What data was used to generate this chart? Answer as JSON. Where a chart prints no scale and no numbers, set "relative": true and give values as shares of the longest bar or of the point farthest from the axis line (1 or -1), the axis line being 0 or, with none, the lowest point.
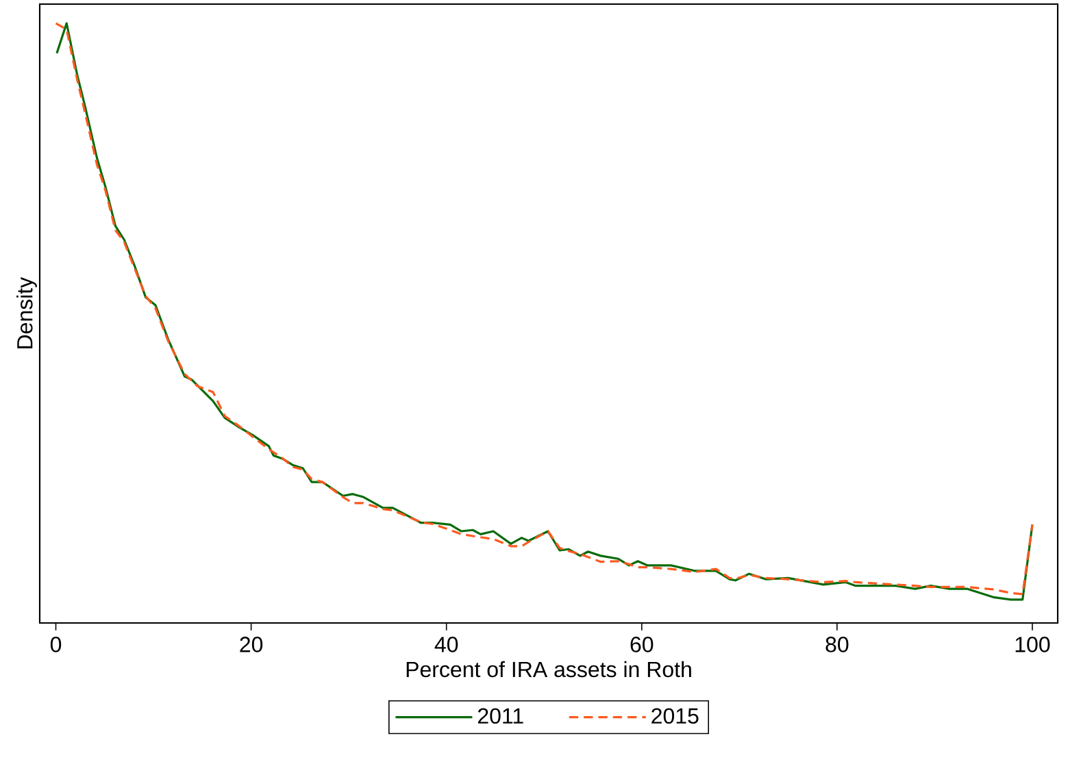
{
  "chart_data": {
    "type": "line",
    "relative": true,
    "xlabel": "Percent of IRA assets in Roth",
    "ylabel": "Density",
    "xlim": [
      -1.65,
      102.6
    ],
    "xticks": [
      0,
      20,
      40,
      60,
      80,
      100
    ],
    "legend": "bottom",
    "series": [
      {
        "name": "2011",
        "color": "#0b6b0b",
        "line_style": "solid",
        "x": [
          0.1,
          1.1,
          2.2,
          3.0,
          4.2,
          5.1,
          6.1,
          7.0,
          8.1,
          9.2,
          10.2,
          11.5,
          13.2,
          13.9,
          16.1,
          17.3,
          18.8,
          20.2,
          21.8,
          22.3,
          23.2,
          24.3,
          25.3,
          26.2,
          27.3,
          29.4,
          30.4,
          31.5,
          33.5,
          34.5,
          37.4,
          38.6,
          40.4,
          41.5,
          42.7,
          43.5,
          44.8,
          46.6,
          47.7,
          48.4,
          50.4,
          51.6,
          52.5,
          53.7,
          54.5,
          55.8,
          57.6,
          58.7,
          59.6,
          60.6,
          63.0,
          65.4,
          67.6,
          69.0,
          69.6,
          71.0,
          72.7,
          75.0,
          78.6,
          80.9,
          81.9,
          86.0,
          88.0,
          89.6,
          91.5,
          93.3,
          96.0,
          97.8,
          99,
          100
        ],
        "values": [
          0.95,
          1.0,
          0.913,
          0.861,
          0.776,
          0.726,
          0.662,
          0.639,
          0.594,
          0.543,
          0.53,
          0.473,
          0.411,
          0.406,
          0.37,
          0.342,
          0.326,
          0.313,
          0.295,
          0.279,
          0.274,
          0.263,
          0.258,
          0.235,
          0.235,
          0.212,
          0.215,
          0.21,
          0.192,
          0.192,
          0.167,
          0.167,
          0.164,
          0.153,
          0.155,
          0.148,
          0.153,
          0.132,
          0.142,
          0.137,
          0.153,
          0.121,
          0.123,
          0.112,
          0.119,
          0.112,
          0.107,
          0.096,
          0.103,
          0.096,
          0.096,
          0.087,
          0.087,
          0.073,
          0.071,
          0.082,
          0.073,
          0.075,
          0.064,
          0.068,
          0.062,
          0.062,
          0.057,
          0.062,
          0.057,
          0.057,
          0.043,
          0.039,
          0.039,
          0.164
        ]
      },
      {
        "name": "2015",
        "color": "#ff5a1f",
        "line_style": "dashed",
        "x": [
          0,
          1.1,
          2.2,
          3.0,
          4.2,
          5.1,
          6.1,
          7.0,
          8.1,
          9.2,
          10.2,
          11.5,
          13.2,
          14.5,
          16.1,
          17.3,
          18.8,
          20.2,
          21.8,
          23.2,
          24.3,
          25.3,
          26.2,
          27.3,
          29.4,
          30.4,
          31.5,
          33.5,
          34.5,
          37.4,
          38.6,
          40.4,
          41.5,
          42.7,
          43.5,
          44.8,
          46.6,
          47.7,
          48.4,
          50.4,
          51.6,
          52.5,
          53.7,
          54.5,
          55.8,
          57.6,
          58.7,
          59.6,
          60.6,
          63.0,
          65.4,
          67.6,
          69.0,
          69.6,
          71.0,
          72.7,
          75.0,
          78.6,
          80.9,
          81.9,
          86.0,
          88.0,
          89.6,
          91.5,
          93.3,
          96.0,
          97.8,
          99,
          100
        ],
        "values": [
          1.0,
          0.99,
          0.905,
          0.85,
          0.765,
          0.72,
          0.655,
          0.635,
          0.59,
          0.545,
          0.525,
          0.47,
          0.415,
          0.395,
          0.385,
          0.345,
          0.328,
          0.31,
          0.29,
          0.275,
          0.26,
          0.256,
          0.24,
          0.235,
          0.21,
          0.2,
          0.2,
          0.19,
          0.188,
          0.168,
          0.165,
          0.155,
          0.148,
          0.145,
          0.143,
          0.14,
          0.128,
          0.128,
          0.135,
          0.153,
          0.125,
          0.12,
          0.115,
          0.11,
          0.102,
          0.103,
          0.098,
          0.093,
          0.093,
          0.09,
          0.085,
          0.09,
          0.075,
          0.074,
          0.08,
          0.075,
          0.073,
          0.068,
          0.07,
          0.068,
          0.064,
          0.062,
          0.06,
          0.06,
          0.06,
          0.056,
          0.05,
          0.048,
          0.164
        ]
      }
    ]
  }
}
